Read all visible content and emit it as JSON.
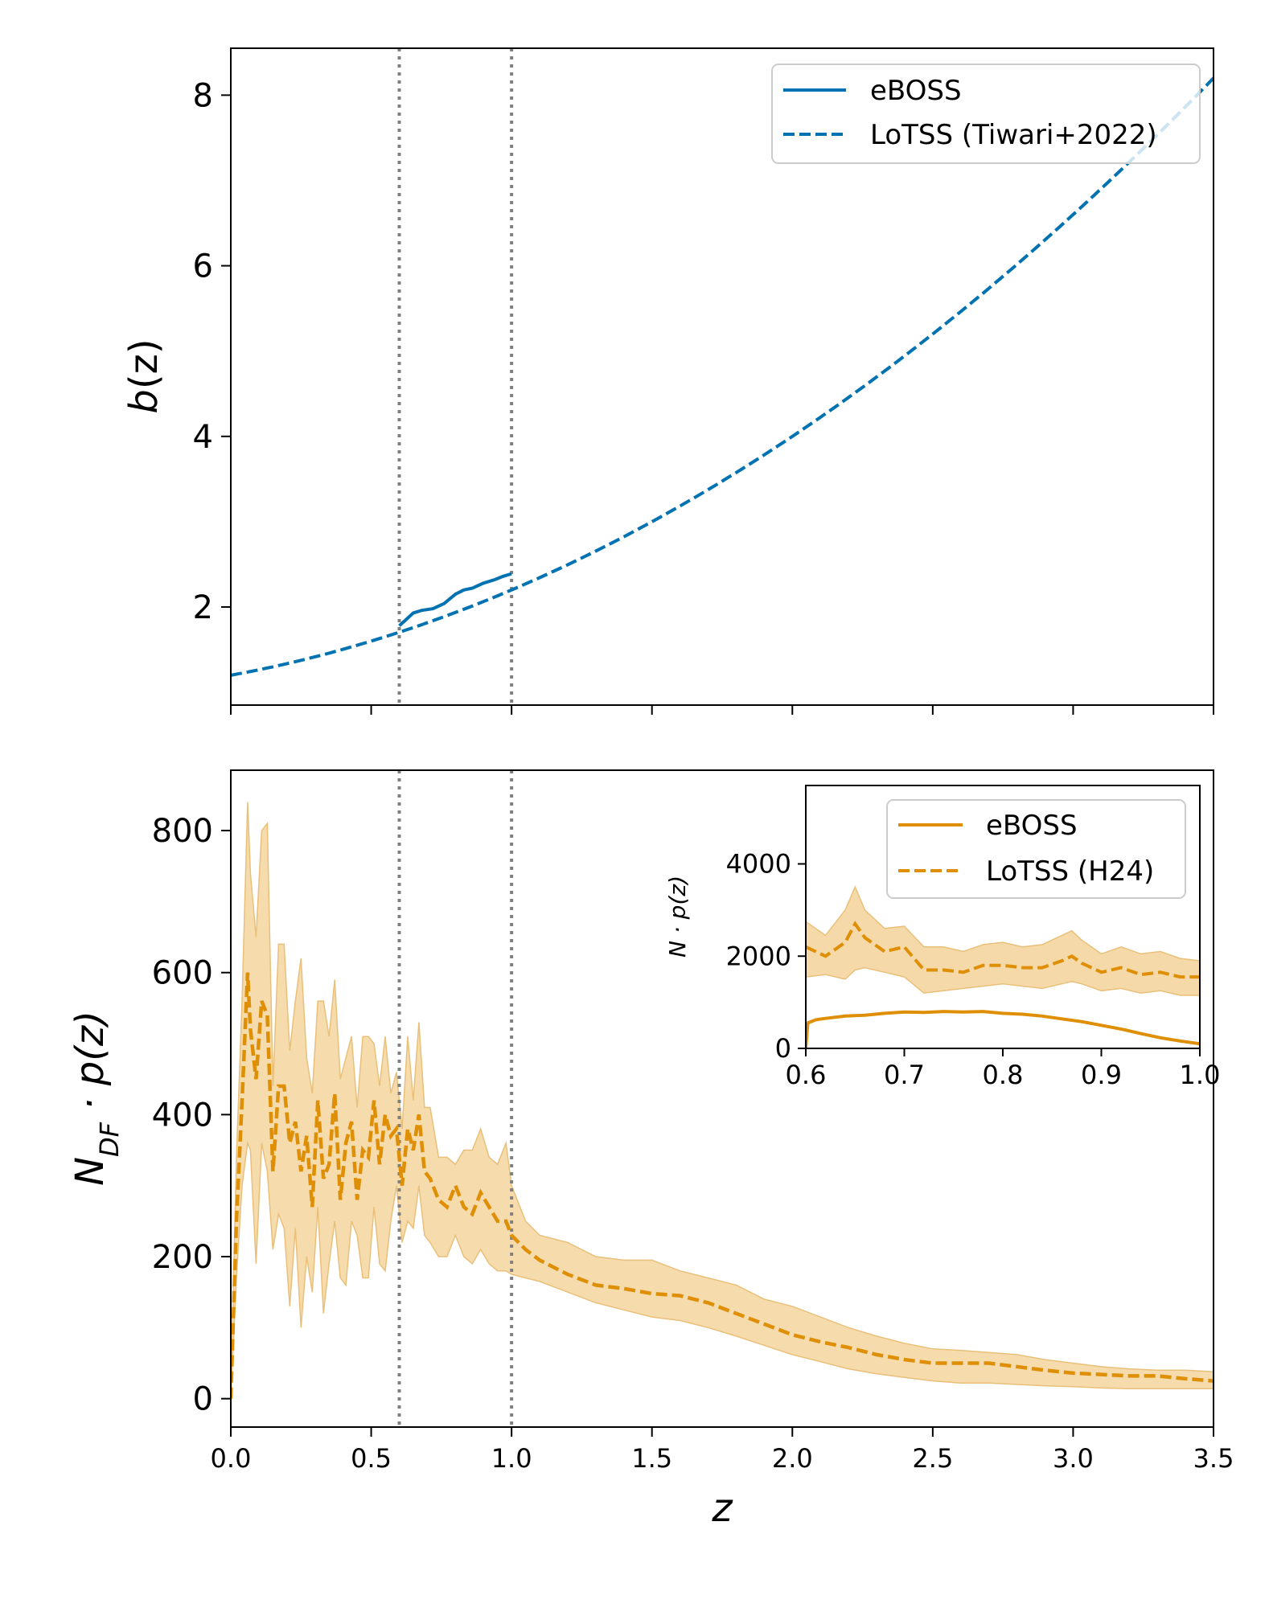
{
  "colors": {
    "blue": "#0072b2",
    "orange": "#de8f05",
    "band": "#f5d9a8",
    "band_edge": "#e9c07a",
    "vline": "#808080",
    "legend_edge": "#cccccc"
  },
  "chart_data": [
    {
      "id": "top",
      "type": "line",
      "ylabel": "b(z)",
      "ylabel_parts": {
        "main": "b",
        "arg": "(z)"
      },
      "xlim": [
        0,
        3.5
      ],
      "ylim": [
        0.85,
        8.55
      ],
      "yticks": [
        2,
        4,
        6,
        8
      ],
      "ytick_labels": [
        "2",
        "4",
        "6",
        "8"
      ],
      "xticks": [
        0,
        0.5,
        1.0,
        1.5,
        2.0,
        2.5,
        3.0,
        3.5
      ],
      "show_xtick_labels": false,
      "vlines": [
        0.6,
        1.0
      ],
      "legend_position": "top-right",
      "series": [
        {
          "name": "eBOSS",
          "style": "solid",
          "color": "#0072b2",
          "x": [
            0.6,
            0.62,
            0.65,
            0.68,
            0.72,
            0.76,
            0.8,
            0.83,
            0.86,
            0.9,
            0.94,
            0.97,
            1.0
          ],
          "y": [
            1.78,
            1.84,
            1.93,
            1.96,
            1.98,
            2.04,
            2.15,
            2.2,
            2.22,
            2.28,
            2.32,
            2.36,
            2.39
          ]
        },
        {
          "name": "LoTSS (Tiwari+2022)",
          "style": "dashed",
          "color": "#0072b2",
          "function": "1.2 + 0.6*z + 0.4*z^2",
          "x_range": [
            0,
            3.5
          ]
        }
      ]
    },
    {
      "id": "bottom",
      "type": "line",
      "xlabel": "z",
      "ylabel_parts": {
        "main": "N",
        "sub": "DF",
        "rest": " · p(z)"
      },
      "xlim": [
        0,
        3.5
      ],
      "ylim": [
        -40,
        885
      ],
      "yticks": [
        0,
        200,
        400,
        600,
        800
      ],
      "ytick_labels": [
        "0",
        "200",
        "400",
        "600",
        "800"
      ],
      "xticks": [
        0,
        0.5,
        1.0,
        1.5,
        2.0,
        2.5,
        3.0,
        3.5
      ],
      "xtick_labels": [
        "0.0",
        "0.5",
        "1.0",
        "1.5",
        "2.0",
        "2.5",
        "3.0",
        "3.5"
      ],
      "vlines": [
        0.6,
        1.0
      ],
      "series": [
        {
          "name": "LoTSS (H24)",
          "style": "dashed",
          "color": "#de8f05",
          "x": [
            0.0,
            0.02,
            0.04,
            0.06,
            0.07,
            0.09,
            0.11,
            0.13,
            0.15,
            0.17,
            0.19,
            0.21,
            0.23,
            0.25,
            0.27,
            0.29,
            0.31,
            0.33,
            0.35,
            0.37,
            0.39,
            0.41,
            0.43,
            0.45,
            0.47,
            0.49,
            0.51,
            0.53,
            0.55,
            0.57,
            0.59,
            0.61,
            0.63,
            0.65,
            0.67,
            0.69,
            0.71,
            0.74,
            0.77,
            0.8,
            0.83,
            0.86,
            0.89,
            0.92,
            0.95,
            0.98,
            1.0,
            1.05,
            1.1,
            1.2,
            1.3,
            1.4,
            1.5,
            1.6,
            1.7,
            1.8,
            1.9,
            2.0,
            2.1,
            2.2,
            2.3,
            2.4,
            2.5,
            2.6,
            2.7,
            2.8,
            2.9,
            3.0,
            3.1,
            3.2,
            3.3,
            3.4,
            3.5
          ],
          "y": [
            0,
            250,
            420,
            600,
            520,
            450,
            560,
            540,
            320,
            440,
            440,
            360,
            390,
            320,
            370,
            270,
            420,
            310,
            330,
            430,
            280,
            360,
            390,
            280,
            350,
            340,
            420,
            330,
            400,
            370,
            380,
            300,
            380,
            350,
            400,
            320,
            310,
            280,
            270,
            300,
            270,
            260,
            290,
            270,
            250,
            250,
            230,
            210,
            195,
            175,
            160,
            155,
            148,
            145,
            135,
            120,
            105,
            90,
            80,
            72,
            62,
            55,
            50,
            50,
            50,
            45,
            40,
            36,
            34,
            32,
            32,
            28,
            25
          ]
        },
        {
          "name": "LoTSS band lower",
          "style": "fill",
          "color": "#f5d9a8",
          "x": [
            0.0,
            0.02,
            0.04,
            0.06,
            0.07,
            0.09,
            0.11,
            0.13,
            0.15,
            0.17,
            0.19,
            0.21,
            0.23,
            0.25,
            0.27,
            0.29,
            0.31,
            0.33,
            0.35,
            0.37,
            0.39,
            0.41,
            0.43,
            0.45,
            0.47,
            0.49,
            0.51,
            0.53,
            0.55,
            0.57,
            0.59,
            0.61,
            0.63,
            0.65,
            0.67,
            0.69,
            0.71,
            0.74,
            0.77,
            0.8,
            0.83,
            0.86,
            0.89,
            0.92,
            0.95,
            0.98,
            1.0,
            1.05,
            1.1,
            1.2,
            1.3,
            1.4,
            1.5,
            1.6,
            1.7,
            1.8,
            1.9,
            2.0,
            2.1,
            2.2,
            2.3,
            2.4,
            2.5,
            2.6,
            2.7,
            2.8,
            2.9,
            3.0,
            3.1,
            3.2,
            3.3,
            3.4,
            3.5
          ],
          "y": [
            0,
            170,
            300,
            360,
            350,
            190,
            360,
            320,
            210,
            260,
            240,
            130,
            240,
            100,
            200,
            150,
            270,
            120,
            190,
            250,
            170,
            160,
            250,
            230,
            170,
            170,
            270,
            190,
            180,
            250,
            300,
            220,
            250,
            240,
            300,
            230,
            220,
            200,
            200,
            230,
            200,
            190,
            210,
            190,
            180,
            180,
            175,
            170,
            165,
            150,
            135,
            125,
            115,
            110,
            100,
            88,
            75,
            62,
            52,
            42,
            35,
            30,
            25,
            22,
            22,
            20,
            18,
            17,
            15,
            14,
            14,
            14,
            14
          ]
        },
        {
          "name": "LoTSS band upper",
          "style": "fill",
          "color": "#f5d9a8",
          "x": [
            0.0,
            0.02,
            0.04,
            0.06,
            0.07,
            0.09,
            0.11,
            0.13,
            0.15,
            0.17,
            0.19,
            0.21,
            0.23,
            0.25,
            0.27,
            0.29,
            0.31,
            0.33,
            0.35,
            0.37,
            0.39,
            0.41,
            0.43,
            0.45,
            0.47,
            0.49,
            0.51,
            0.53,
            0.55,
            0.57,
            0.59,
            0.61,
            0.63,
            0.65,
            0.67,
            0.69,
            0.71,
            0.74,
            0.77,
            0.8,
            0.83,
            0.86,
            0.89,
            0.92,
            0.95,
            0.98,
            1.0,
            1.05,
            1.1,
            1.2,
            1.3,
            1.4,
            1.5,
            1.6,
            1.7,
            1.8,
            1.9,
            2.0,
            2.1,
            2.2,
            2.3,
            2.4,
            2.5,
            2.6,
            2.7,
            2.8,
            2.9,
            3.0,
            3.1,
            3.2,
            3.3,
            3.4,
            3.5
          ],
          "y": [
            0,
            340,
            560,
            840,
            740,
            650,
            800,
            810,
            440,
            640,
            640,
            490,
            560,
            620,
            480,
            430,
            560,
            560,
            510,
            590,
            450,
            480,
            510,
            410,
            510,
            510,
            500,
            440,
            510,
            430,
            460,
            380,
            510,
            420,
            530,
            410,
            410,
            340,
            340,
            330,
            350,
            350,
            380,
            340,
            330,
            360,
            300,
            250,
            230,
            220,
            200,
            195,
            195,
            180,
            170,
            160,
            140,
            130,
            115,
            100,
            88,
            78,
            70,
            68,
            65,
            62,
            55,
            50,
            45,
            42,
            40,
            40,
            38
          ]
        }
      ]
    },
    {
      "id": "inset",
      "type": "line",
      "ylabel_parts": {
        "main": "N",
        "rest": " · p(z)"
      },
      "xlim": [
        0.6,
        1.0
      ],
      "ylim": [
        0,
        5700
      ],
      "yticks": [
        0,
        2000,
        4000
      ],
      "ytick_labels": [
        "0",
        "2000",
        "4000"
      ],
      "xticks": [
        0.6,
        0.7,
        0.8,
        0.9,
        1.0
      ],
      "xtick_labels": [
        "0.6",
        "0.7",
        "0.8",
        "0.9",
        "1.0"
      ],
      "legend_position": "top-right",
      "series": [
        {
          "name": "eBOSS",
          "style": "solid",
          "color": "#de8f05",
          "x": [
            0.6,
            0.602,
            0.61,
            0.62,
            0.64,
            0.66,
            0.68,
            0.7,
            0.72,
            0.74,
            0.76,
            0.78,
            0.8,
            0.82,
            0.84,
            0.86,
            0.88,
            0.9,
            0.92,
            0.94,
            0.96,
            0.98,
            1.0
          ],
          "y": [
            0,
            550,
            620,
            650,
            700,
            720,
            760,
            790,
            780,
            800,
            790,
            800,
            760,
            740,
            700,
            640,
            580,
            500,
            420,
            320,
            230,
            160,
            100
          ]
        },
        {
          "name": "LoTSS (H24)",
          "style": "dashed",
          "color": "#de8f05",
          "x": [
            0.6,
            0.62,
            0.64,
            0.65,
            0.66,
            0.68,
            0.7,
            0.72,
            0.74,
            0.76,
            0.78,
            0.8,
            0.82,
            0.84,
            0.86,
            0.87,
            0.88,
            0.9,
            0.92,
            0.94,
            0.96,
            0.98,
            1.0
          ],
          "y": [
            2200,
            2000,
            2300,
            2700,
            2400,
            2100,
            2200,
            1700,
            1700,
            1650,
            1800,
            1800,
            1750,
            1750,
            1900,
            2000,
            1850,
            1650,
            1750,
            1600,
            1650,
            1550,
            1550
          ]
        },
        {
          "name": "LoTSS band lower",
          "style": "fill",
          "color": "#f5d9a8",
          "x": [
            0.6,
            0.62,
            0.64,
            0.65,
            0.66,
            0.68,
            0.7,
            0.72,
            0.74,
            0.76,
            0.78,
            0.8,
            0.82,
            0.84,
            0.86,
            0.87,
            0.88,
            0.9,
            0.92,
            0.94,
            0.96,
            0.98,
            1.0
          ],
          "y": [
            1550,
            1600,
            1500,
            1700,
            1750,
            1650,
            1550,
            1200,
            1250,
            1300,
            1350,
            1400,
            1350,
            1300,
            1400,
            1450,
            1400,
            1250,
            1300,
            1200,
            1250,
            1150,
            1150
          ]
        },
        {
          "name": "LoTSS band upper",
          "style": "fill",
          "color": "#f5d9a8",
          "x": [
            0.6,
            0.62,
            0.64,
            0.65,
            0.66,
            0.68,
            0.7,
            0.72,
            0.74,
            0.76,
            0.78,
            0.8,
            0.82,
            0.84,
            0.86,
            0.87,
            0.88,
            0.9,
            0.92,
            0.94,
            0.96,
            0.98,
            1.0
          ],
          "y": [
            2750,
            2450,
            3000,
            3500,
            3000,
            2600,
            2650,
            2200,
            2200,
            2100,
            2250,
            2300,
            2200,
            2250,
            2450,
            2550,
            2350,
            2050,
            2200,
            2050,
            2100,
            1950,
            1900
          ]
        }
      ]
    }
  ]
}
